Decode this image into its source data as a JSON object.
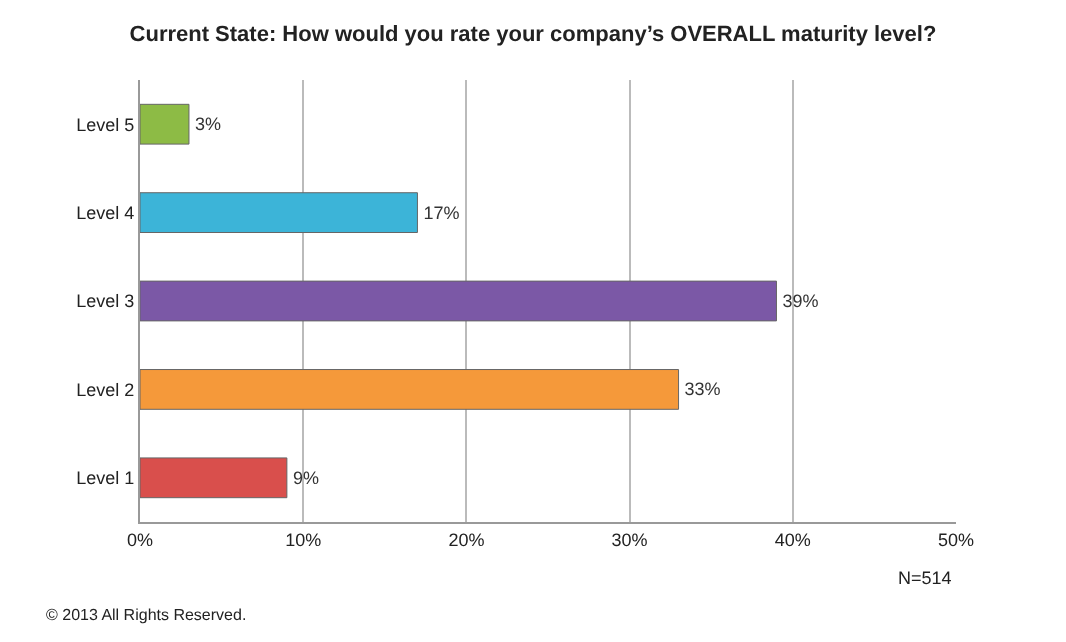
{
  "chart_data": {
    "type": "bar",
    "orientation": "horizontal",
    "title": "Current State: How would you rate your company’s OVERALL maturity level?",
    "categories": [
      "Level 5",
      "Level 4",
      "Level 3",
      "Level 2",
      "Level 1"
    ],
    "values": [
      3,
      17,
      39,
      33,
      9
    ],
    "colors": [
      "#8dbb45",
      "#3cb4d8",
      "#7b58a6",
      "#f5993a",
      "#d94f4c"
    ],
    "value_labels": [
      "3%",
      "17%",
      "39%",
      "33%",
      "9%"
    ],
    "xlim": [
      0,
      50
    ],
    "xticks": [
      {
        "value": 0,
        "label": "0%"
      },
      {
        "value": 10,
        "label": "10%"
      },
      {
        "value": 20,
        "label": "20%"
      },
      {
        "value": 30,
        "label": "30%"
      },
      {
        "value": 40,
        "label": "40%"
      },
      {
        "value": 50,
        "label": "50%"
      }
    ],
    "grid": "x",
    "annotations": [
      "N=514",
      "© 2013 All Rights Reserved."
    ]
  }
}
